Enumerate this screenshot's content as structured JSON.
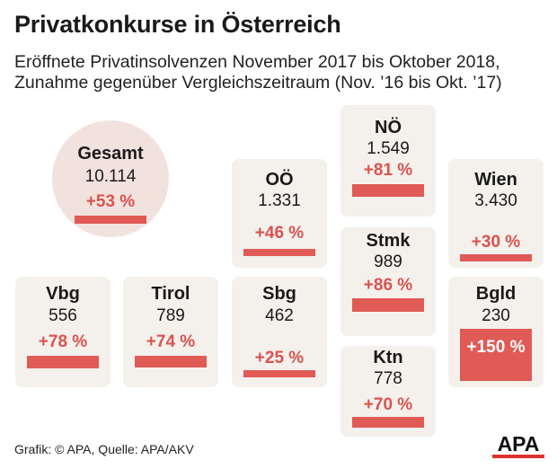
{
  "title": "Privatkonkurse in Österreich",
  "subtitle": {
    "line1": "Eröffnete Privatinsolvenzen November 2017 bis Oktober 2018,",
    "line2": "Zunahme gegenüber Vergleichszeitraum (Nov. ’16 bis Okt. ’17)"
  },
  "footer": "Grafik: © APA, Quelle: APA/AKV",
  "logo_text": "APA",
  "colors": {
    "bar": "#e05a56",
    "card": "#f4f0ec",
    "circle": "#f2e2dd",
    "pct_text": "#d9534f"
  },
  "chart_data": {
    "type": "bar",
    "title": "Privatkonkurse in Österreich",
    "categories": [
      "Gesamt",
      "NÖ",
      "OÖ",
      "Wien",
      "Stmk",
      "Vbg",
      "Tirol",
      "Sbg",
      "Bgld",
      "Ktn"
    ],
    "series": [
      {
        "name": "Eröffnete Privatinsolvenzen",
        "values": [
          10114,
          1549,
          1331,
          3430,
          989,
          556,
          789,
          462,
          230,
          778
        ]
      },
      {
        "name": "Zunahme (%)",
        "values": [
          53,
          81,
          46,
          30,
          86,
          78,
          74,
          25,
          150,
          70
        ]
      }
    ],
    "regions": [
      {
        "name": "Gesamt",
        "count": "10.114",
        "pct": "+53 %",
        "change": 53
      },
      {
        "name": "NÖ",
        "count": "1.549",
        "pct": "+81 %",
        "change": 81
      },
      {
        "name": "OÖ",
        "count": "1.331",
        "pct": "+46 %",
        "change": 46
      },
      {
        "name": "Wien",
        "count": "3.430",
        "pct": "+30 %",
        "change": 30
      },
      {
        "name": "Stmk",
        "count": "989",
        "pct": "+86 %",
        "change": 86
      },
      {
        "name": "Vbg",
        "count": "556",
        "pct": "+78 %",
        "change": 78
      },
      {
        "name": "Tirol",
        "count": "789",
        "pct": "+74 %",
        "change": 74
      },
      {
        "name": "Sbg",
        "count": "462",
        "pct": "+25 %",
        "change": 25
      },
      {
        "name": "Bgld",
        "count": "230",
        "pct": "+150 %",
        "change": 150
      },
      {
        "name": "Ktn",
        "count": "778",
        "pct": "+70 %",
        "change": 70
      }
    ]
  }
}
